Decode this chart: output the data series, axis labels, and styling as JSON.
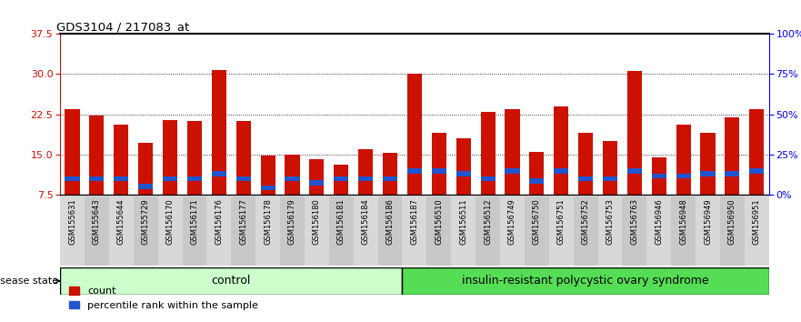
{
  "title": "GDS3104 / 217083_at",
  "samples": [
    "GSM155631",
    "GSM155643",
    "GSM155644",
    "GSM155729",
    "GSM156170",
    "GSM156171",
    "GSM156176",
    "GSM156177",
    "GSM156178",
    "GSM156179",
    "GSM156180",
    "GSM156181",
    "GSM156184",
    "GSM156186",
    "GSM156187",
    "GSM156510",
    "GSM156511",
    "GSM156512",
    "GSM156749",
    "GSM156750",
    "GSM156751",
    "GSM156752",
    "GSM156753",
    "GSM156763",
    "GSM156946",
    "GSM156948",
    "GSM156949",
    "GSM156950",
    "GSM156951"
  ],
  "red_values": [
    23.5,
    22.2,
    20.5,
    17.2,
    21.5,
    21.3,
    30.8,
    21.3,
    14.8,
    15.0,
    14.2,
    13.2,
    16.0,
    15.4,
    30.1,
    19.0,
    18.0,
    23.0,
    23.5,
    15.5,
    24.0,
    19.0,
    17.5,
    30.5,
    14.5,
    20.5,
    19.0,
    22.0,
    23.5
  ],
  "blue_values": [
    10.5,
    10.5,
    10.5,
    9.0,
    10.5,
    10.5,
    11.5,
    10.5,
    8.8,
    10.5,
    9.8,
    10.5,
    10.5,
    10.5,
    12.0,
    12.0,
    11.5,
    10.5,
    12.0,
    10.0,
    12.0,
    10.5,
    10.5,
    12.0,
    11.0,
    11.0,
    11.5,
    11.5,
    12.0
  ],
  "n_control": 14,
  "n_disease": 15,
  "control_label": "control",
  "disease_label": "insulin-resistant polycystic ovary syndrome",
  "disease_state_label": "disease state",
  "ylim_left": [
    7.5,
    37.5
  ],
  "yticks_left": [
    7.5,
    15.0,
    22.5,
    30.0,
    37.5
  ],
  "ylim_right": [
    0,
    100
  ],
  "yticks_right": [
    0,
    25,
    50,
    75,
    100
  ],
  "ytick_labels_right": [
    "0%",
    "25%",
    "50%",
    "75%",
    "100%"
  ],
  "red_color": "#cc1100",
  "blue_color": "#2255cc",
  "control_bg": "#ccffcc",
  "disease_bg": "#55dd55",
  "legend_count": "count",
  "legend_percentile": "percentile rank within the sample"
}
